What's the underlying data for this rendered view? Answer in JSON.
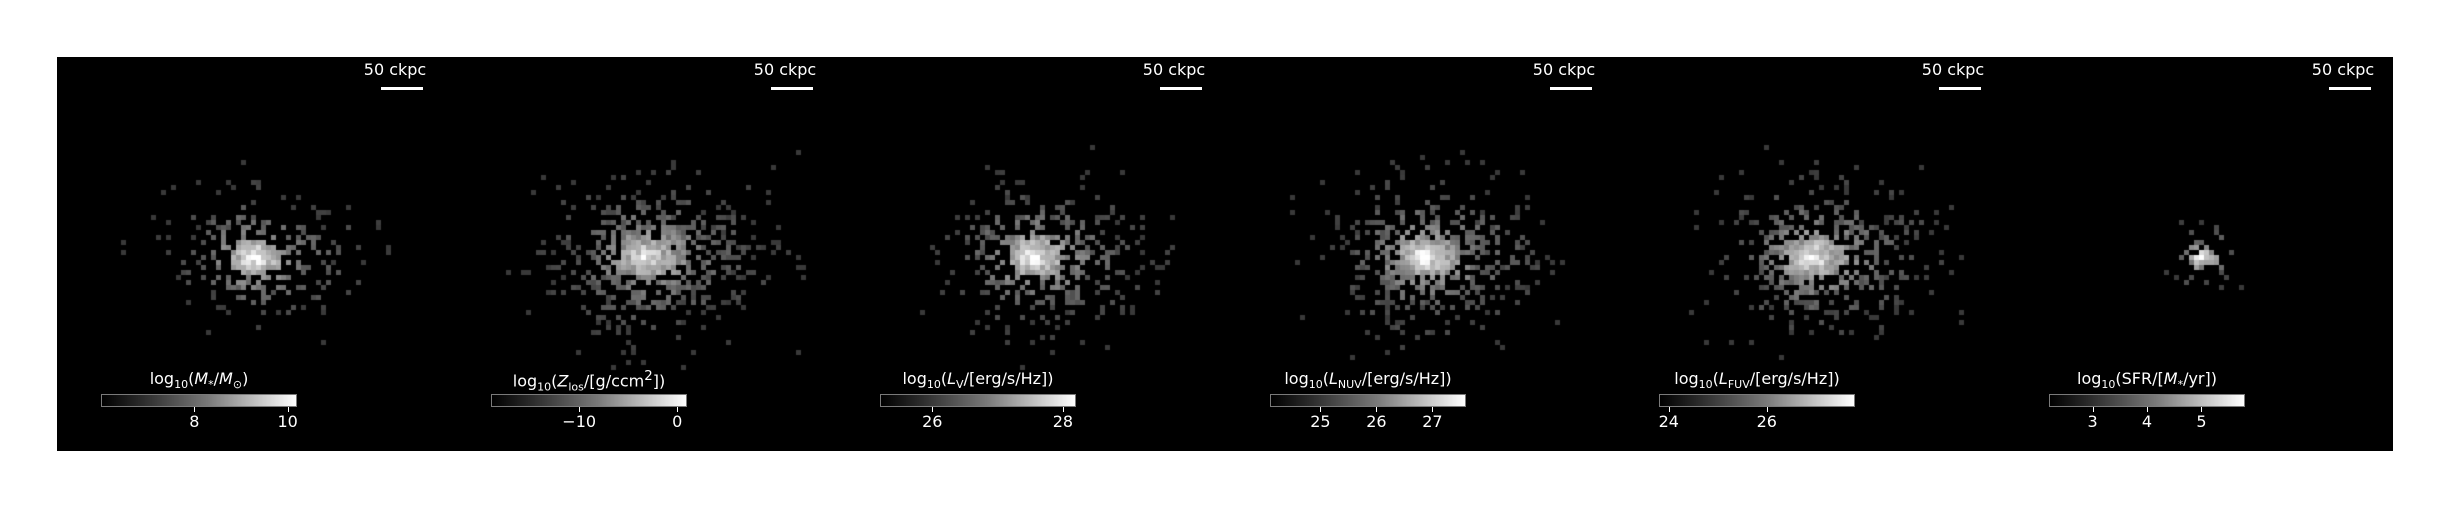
{
  "scale_bar_label": "50 ckpc",
  "panels": [
    {
      "map": "stellar mass",
      "cbar_html": "log<sub>10</sub>(<i>M</i><sub>*</sub>/<i>M</i><sub>⊙</sub>)",
      "ticks": [
        "8",
        "10"
      ],
      "tick_values": [
        8,
        10
      ],
      "range": [
        6.0,
        10.2
      ],
      "spread": 58,
      "occupancy": 0.55,
      "core": 1.0
    },
    {
      "map": "metallicity",
      "cbar_html": "log<sub>10</sub>(<i>Z</i><sub>los</sub>/[g/ccm<sup>2</sup>])",
      "ticks": [
        "−10",
        "0"
      ],
      "tick_values": [
        -10,
        0
      ],
      "range": [
        -19,
        1
      ],
      "spread": 70,
      "occupancy": 0.8,
      "core": 0.85
    },
    {
      "map": "V-band luminosity",
      "cbar_html": "log<sub>10</sub>(<i>L</i><sub>V</sub>/[erg/s/Hz])",
      "ticks": [
        "26",
        "28"
      ],
      "tick_values": [
        26,
        28
      ],
      "range": [
        25.2,
        28.2
      ],
      "spread": 65,
      "occupancy": 0.65,
      "core": 0.95
    },
    {
      "map": "NUV luminosity",
      "cbar_html": "log<sub>10</sub>(<i>L</i><sub>NUV</sub>/[erg/s/Hz])",
      "ticks": [
        "25",
        "26",
        "27"
      ],
      "tick_values": [
        25,
        26,
        27
      ],
      "range": [
        24.1,
        27.6
      ],
      "spread": 68,
      "occupancy": 0.7,
      "core": 0.9
    },
    {
      "map": "FUV luminosity",
      "cbar_html": "log<sub>10</sub>(<i>L</i><sub>FUV</sub>/[erg/s/Hz])",
      "ticks": [
        "24",
        "26"
      ],
      "tick_values": [
        24,
        26
      ],
      "range": [
        23.8,
        27.8
      ],
      "spread": 68,
      "occupancy": 0.7,
      "core": 0.9
    },
    {
      "map": "star formation rate",
      "cbar_html": "log<sub>10</sub>(SFR/[<i>M</i><sub>*</sub>/yr])",
      "ticks": [
        "3",
        "4",
        "5"
      ],
      "tick_values": [
        3,
        4,
        5
      ],
      "range": [
        2.2,
        5.8
      ],
      "spread": 28,
      "occupancy": 0.35,
      "core": 1.0
    }
  ]
}
